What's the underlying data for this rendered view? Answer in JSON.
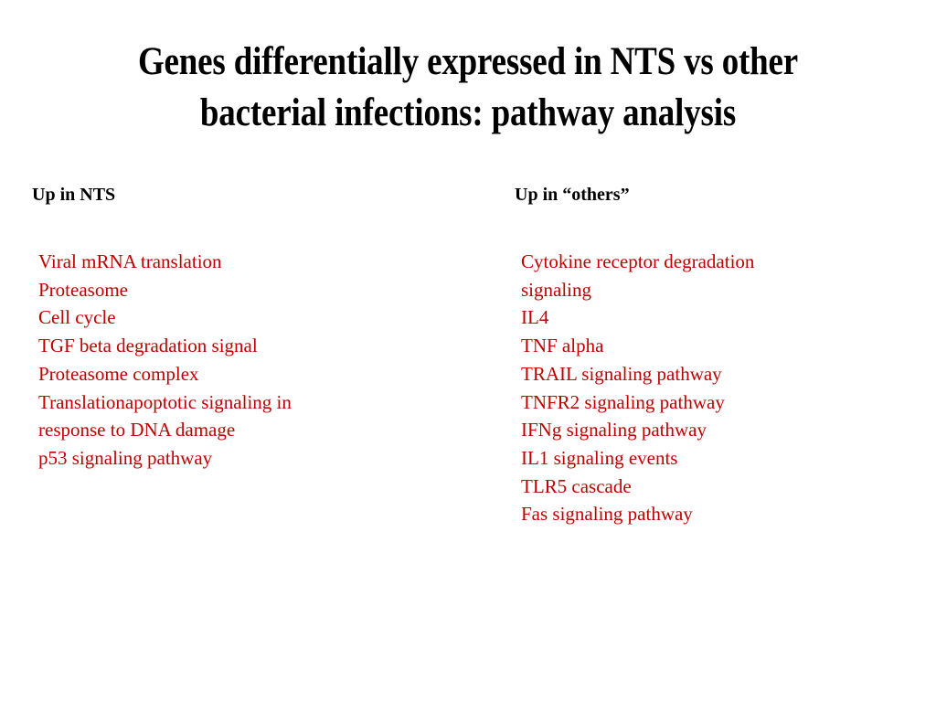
{
  "slide": {
    "title_lines": [
      "Genes differentially expressed in NTS vs other",
      "bacterial infections: pathway analysis"
    ],
    "text_color": "#C00000"
  },
  "left": {
    "heading": "Up in NTS",
    "items": [
      "Viral mRNA translation",
      "Proteasome",
      "Cell cycle",
      "TGF beta degradation signal",
      "Proteasome complex",
      "Translationapoptotic signaling in",
      "response to DNA damage",
      "p53 signaling pathway"
    ]
  },
  "right": {
    "heading": "Up in “others”",
    "items": [
      "Cytokine receptor degradation",
      "signaling",
      "IL4",
      "TNF alpha",
      "TRAIL signaling pathway",
      "TNFR2 signaling pathway",
      "IFNg signaling pathway",
      "IL1 signaling events",
      "TLR5 cascade",
      "Fas signaling pathway"
    ]
  }
}
